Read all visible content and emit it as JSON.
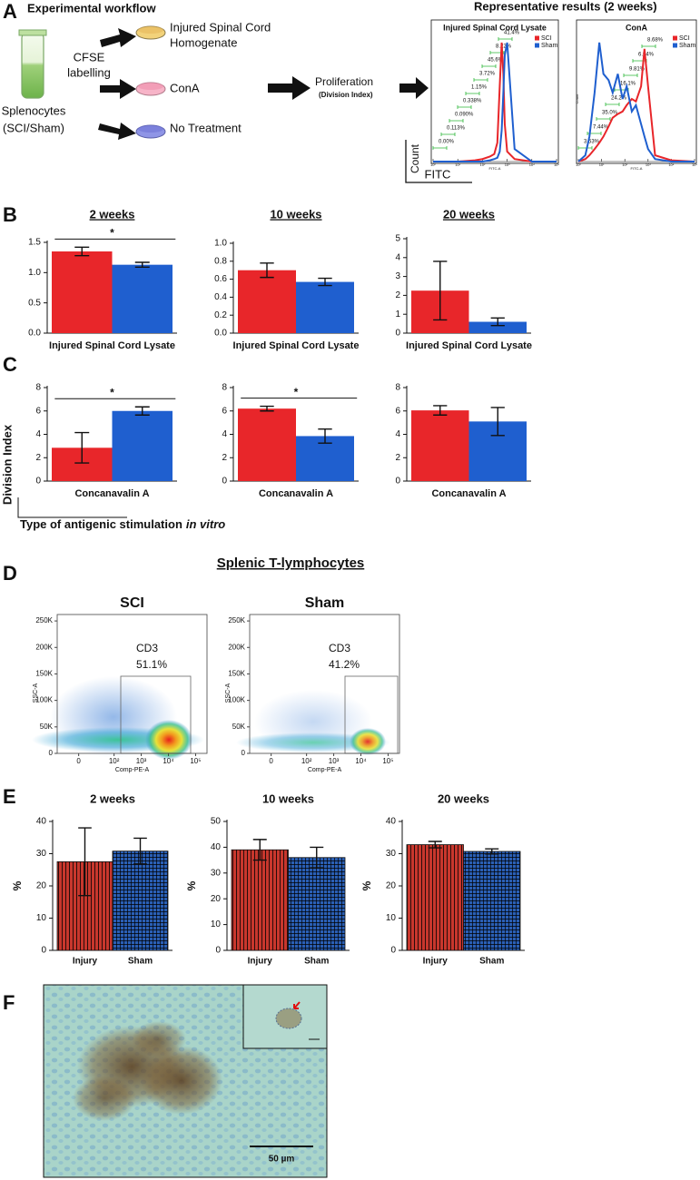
{
  "panel_labels": [
    "A",
    "B",
    "C",
    "D",
    "E",
    "F"
  ],
  "workflow": {
    "title": "Experimental workflow",
    "cells": [
      "Splenocytes",
      "(SCI/Sham)"
    ],
    "labelling": [
      "CFSE",
      "labelling"
    ],
    "treatments": [
      [
        "Injured Spinal Cord",
        "Homogenate"
      ],
      [
        "ConA"
      ],
      [
        "No Treatment"
      ]
    ],
    "readout": "Proliferation",
    "readout_detail": "(Division Index)"
  },
  "results": {
    "title": "Representative results (2 weeks)",
    "key_y": "Count",
    "key_x": "FITC"
  },
  "division_index": {
    "ylabel": "Division Index",
    "xlabel": "Type of antigenic stimulation",
    "xlabel_italic": "in vitro"
  },
  "flow_title": "Splenic T-lymphocytes",
  "micrograph": {
    "scale_bar": "50 µm"
  },
  "chart_data": [
    {
      "type": "line",
      "title": "Injured Spinal Cord Lysate",
      "xscale": "log",
      "xlim": [
        1,
        100000
      ],
      "ylim": [
        0,
        100
      ],
      "xticks": [
        {
          "value": 1,
          "label": "10⁰"
        },
        {
          "value": 10,
          "label": "10¹"
        },
        {
          "value": 100,
          "label": "10²"
        },
        {
          "value": 1000,
          "label": "10³"
        },
        {
          "value": 10000,
          "label": "10⁴"
        },
        {
          "value": 100000,
          "label": "10⁵"
        }
      ],
      "xlabel": "FITC-A",
      "x": [
        1,
        10,
        50,
        100,
        200,
        300,
        400,
        500,
        600,
        700,
        800,
        1000,
        2000,
        10000,
        100000
      ],
      "series": [
        {
          "name": "SCI",
          "color": "#e8262a",
          "values": [
            0,
            0,
            1,
            2,
            4,
            6,
            15,
            60,
            95,
            70,
            30,
            8,
            2,
            0,
            0
          ]
        },
        {
          "name": "Sham",
          "color": "#1f5fcf",
          "values": [
            0,
            0,
            0,
            0,
            1,
            2,
            3,
            8,
            25,
            55,
            85,
            95,
            10,
            0,
            0
          ]
        }
      ],
      "gates": [
        "0.00%",
        "0.113%",
        "0.090%",
        "0.338%",
        "1.15%",
        "3.72%",
        "45.6%",
        "8.22%",
        "41.4%"
      ]
    },
    {
      "type": "line",
      "title": "ConA",
      "xscale": "log",
      "xlim": [
        1,
        100000
      ],
      "ylim": [
        0,
        100
      ],
      "xticks": [
        {
          "value": 1,
          "label": "10⁰"
        },
        {
          "value": 10,
          "label": "10¹"
        },
        {
          "value": 100,
          "label": "10²"
        },
        {
          "value": 1000,
          "label": "10³"
        },
        {
          "value": 10000,
          "label": "10⁴"
        },
        {
          "value": 100000,
          "label": "10⁵"
        }
      ],
      "xlabel": "FITC-A",
      "ylabel": "Count",
      "x": [
        1,
        2,
        3,
        5,
        8,
        12,
        20,
        30,
        50,
        80,
        120,
        200,
        300,
        500,
        700,
        1000,
        2000,
        10000,
        100000
      ],
      "series": [
        {
          "name": "SCI",
          "color": "#e8262a",
          "values": [
            0,
            2,
            5,
            10,
            15,
            20,
            28,
            35,
            38,
            40,
            45,
            50,
            48,
            60,
            90,
            60,
            5,
            1,
            0
          ]
        },
        {
          "name": "Sham",
          "color": "#1f5fcf",
          "values": [
            0,
            5,
            20,
            55,
            95,
            70,
            65,
            55,
            70,
            50,
            60,
            40,
            45,
            30,
            20,
            10,
            2,
            0,
            0
          ]
        }
      ],
      "gates": [
        "3.53%",
        "7.44%",
        "35.0%",
        "24.2%",
        "16.1%",
        "9.81%",
        "6.94%",
        "8.68%"
      ]
    },
    {
      "type": "bar",
      "title": "2 weeks",
      "title_underline": true,
      "categories": [
        null,
        null
      ],
      "values": [
        1.35,
        1.13
      ],
      "errors": [
        0.07,
        0.04
      ],
      "colors": [
        "#e8262a",
        "#1f5fcf"
      ],
      "xlabel": "Injured Spinal Cord Lysate",
      "ylim": [
        0,
        1.5
      ],
      "yticks": [
        {
          "value": 0,
          "label": "0.0"
        },
        {
          "value": 0.5,
          "label": "0.5"
        },
        {
          "value": 1,
          "label": "1.0"
        },
        {
          "value": 1.5,
          "label": "1.5"
        }
      ],
      "significance": "*"
    },
    {
      "type": "bar",
      "title": "10 weeks",
      "title_underline": true,
      "categories": [
        null,
        null
      ],
      "values": [
        0.7,
        0.57
      ],
      "errors": [
        0.08,
        0.04
      ],
      "colors": [
        "#e8262a",
        "#1f5fcf"
      ],
      "xlabel": "Injured Spinal Cord Lysate",
      "ylim": [
        0,
        1
      ],
      "yticks": [
        {
          "value": 0,
          "label": "0.0"
        },
        {
          "value": 0.2,
          "label": "0.2"
        },
        {
          "value": 0.4,
          "label": "0.4"
        },
        {
          "value": 0.6,
          "label": "0.6"
        },
        {
          "value": 0.8,
          "label": "0.8"
        },
        {
          "value": 1,
          "label": "1.0"
        }
      ]
    },
    {
      "type": "bar",
      "title": "20 weeks",
      "title_underline": true,
      "categories": [
        null,
        null
      ],
      "values": [
        2.25,
        0.6
      ],
      "errors": [
        1.55,
        0.2
      ],
      "colors": [
        "#e8262a",
        "#1f5fcf"
      ],
      "xlabel": "Injured Spinal Cord Lysate",
      "ylim": [
        0,
        5
      ],
      "yticks": [
        0,
        1,
        2,
        3,
        4,
        5
      ]
    },
    {
      "type": "bar",
      "categories": [
        null,
        null
      ],
      "values": [
        2.85,
        6
      ],
      "errors": [
        1.3,
        0.35
      ],
      "colors": [
        "#e8262a",
        "#1f5fcf"
      ],
      "xlabel": "Concanavalin A",
      "ylim": [
        0,
        8
      ],
      "yticks": [
        0,
        2,
        4,
        6,
        8
      ],
      "significance": "*"
    },
    {
      "type": "bar",
      "categories": [
        null,
        null
      ],
      "values": [
        6.2,
        3.85
      ],
      "errors": [
        0.2,
        0.6
      ],
      "colors": [
        "#e8262a",
        "#1f5fcf"
      ],
      "xlabel": "Concanavalin A",
      "ylim": [
        0,
        8
      ],
      "yticks": [
        0,
        2,
        4,
        6,
        8
      ],
      "significance": "*"
    },
    {
      "type": "bar",
      "categories": [
        null,
        null
      ],
      "values": [
        6.05,
        5.1
      ],
      "errors": [
        0.4,
        1.2
      ],
      "colors": [
        "#e8262a",
        "#1f5fcf"
      ],
      "xlabel": "Concanavalin A",
      "ylim": [
        0,
        8
      ],
      "yticks": [
        0,
        2,
        4,
        6,
        8
      ]
    },
    {
      "type": "density",
      "title": "SCI",
      "xscale": "asinh",
      "xlim": [
        -30,
        262144
      ],
      "ylim": [
        0,
        262144
      ],
      "xticks": [
        0,
        {
          "value": 100,
          "label": "10²"
        },
        {
          "value": 1000,
          "label": "10³"
        },
        {
          "value": 10000,
          "label": "10⁴"
        },
        {
          "value": 100000,
          "label": "10⁵"
        }
      ],
      "yticks": [
        0,
        {
          "value": 50000,
          "label": "50K"
        },
        {
          "value": 100000,
          "label": "100K"
        },
        {
          "value": 150000,
          "label": "150K"
        },
        {
          "value": 200000,
          "label": "200K"
        },
        {
          "value": 250000,
          "label": "250K"
        }
      ],
      "xlabel": "Comp-PE-A",
      "ylabel": "SSC-A",
      "gate_label": "CD3",
      "gate_percent": "51.1%"
    },
    {
      "type": "density",
      "title": "Sham",
      "xscale": "asinh",
      "xlim": [
        -30,
        262144
      ],
      "ylim": [
        0,
        262144
      ],
      "xticks": [
        0,
        {
          "value": 100,
          "label": "10²"
        },
        {
          "value": 1000,
          "label": "10³"
        },
        {
          "value": 10000,
          "label": "10⁴"
        },
        {
          "value": 100000,
          "label": "10⁵"
        }
      ],
      "yticks": [
        0,
        {
          "value": 50000,
          "label": "50K"
        },
        {
          "value": 100000,
          "label": "100K"
        },
        {
          "value": 150000,
          "label": "150K"
        },
        {
          "value": 200000,
          "label": "200K"
        },
        {
          "value": 250000,
          "label": "250K"
        }
      ],
      "xlabel": "Comp-PE-A",
      "ylabel": "SSC-A",
      "gate_label": "CD3",
      "gate_percent": "41.2%"
    },
    {
      "type": "bar",
      "title": "2 weeks",
      "categories": [
        "Injury",
        "Sham"
      ],
      "values": [
        27.5,
        30.8
      ],
      "errors": [
        10.5,
        4
      ],
      "colors": [
        "#c8372d",
        "#2a5fb5"
      ],
      "patterns": [
        "stripes",
        "grid"
      ],
      "ylabel": "%",
      "ylim": [
        0,
        40
      ],
      "yticks": [
        0,
        10,
        20,
        30,
        40
      ]
    },
    {
      "type": "bar",
      "title": "10 weeks",
      "categories": [
        "Injury",
        "Sham"
      ],
      "values": [
        39,
        36
      ],
      "errors": [
        4,
        4
      ],
      "colors": [
        "#c8372d",
        "#2a5fb5"
      ],
      "patterns": [
        "stripes",
        "grid"
      ],
      "ylabel": "%",
      "ylim": [
        0,
        50
      ],
      "yticks": [
        0,
        10,
        20,
        30,
        40,
        50
      ]
    },
    {
      "type": "bar",
      "title": "20 weeks",
      "categories": [
        "Injury",
        "Sham"
      ],
      "values": [
        32.8,
        30.7
      ],
      "errors": [
        1,
        0.8
      ],
      "colors": [
        "#c8372d",
        "#2a5fb5"
      ],
      "patterns": [
        "stripes",
        "grid"
      ],
      "ylabel": "%",
      "ylim": [
        0,
        40
      ],
      "yticks": [
        0,
        10,
        20,
        30,
        40
      ]
    }
  ]
}
